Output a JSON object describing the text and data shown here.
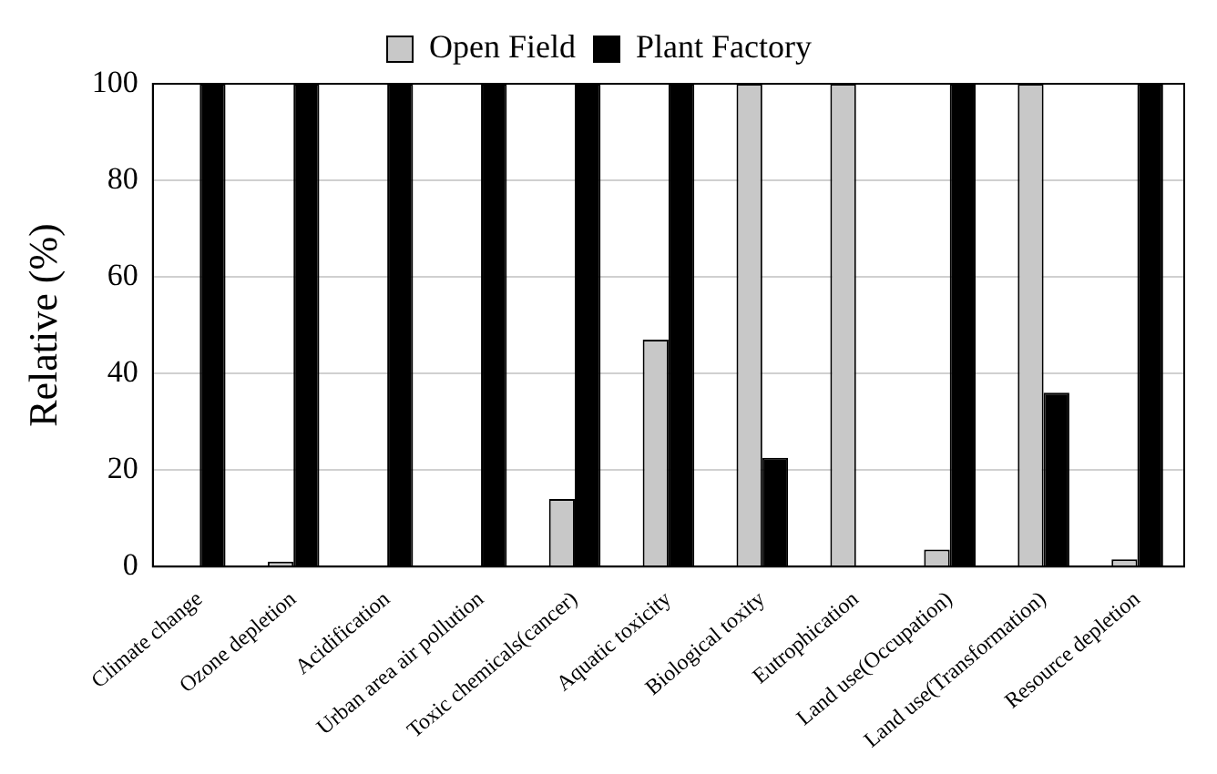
{
  "chart_data": {
    "type": "bar",
    "ylabel": "Relative (%)",
    "categories": [
      "Climate change",
      "Ozone depletion",
      "Acidification",
      "Urban area air pollution",
      "Toxic chemicals(cancer)",
      "Aquatic toxicity",
      "Biological toxity",
      "Eutrophication",
      "Land use(Occupation)",
      "Land use(Transformation)",
      "Resource depletion"
    ],
    "series": [
      {
        "name": "Open Field",
        "color": "#c8c8c8",
        "values": [
          null,
          1,
          null,
          null,
          14,
          47,
          100,
          100,
          3.5,
          100,
          1.5
        ]
      },
      {
        "name": "Plant Factory",
        "color": "#000000",
        "values": [
          100,
          100,
          100,
          100,
          100,
          100,
          22.5,
          0,
          100,
          36,
          100
        ]
      }
    ],
    "ylim": [
      0,
      100
    ],
    "yticks": [
      0,
      20,
      40,
      60,
      80,
      100
    ],
    "grid": "y",
    "legend": "top"
  }
}
